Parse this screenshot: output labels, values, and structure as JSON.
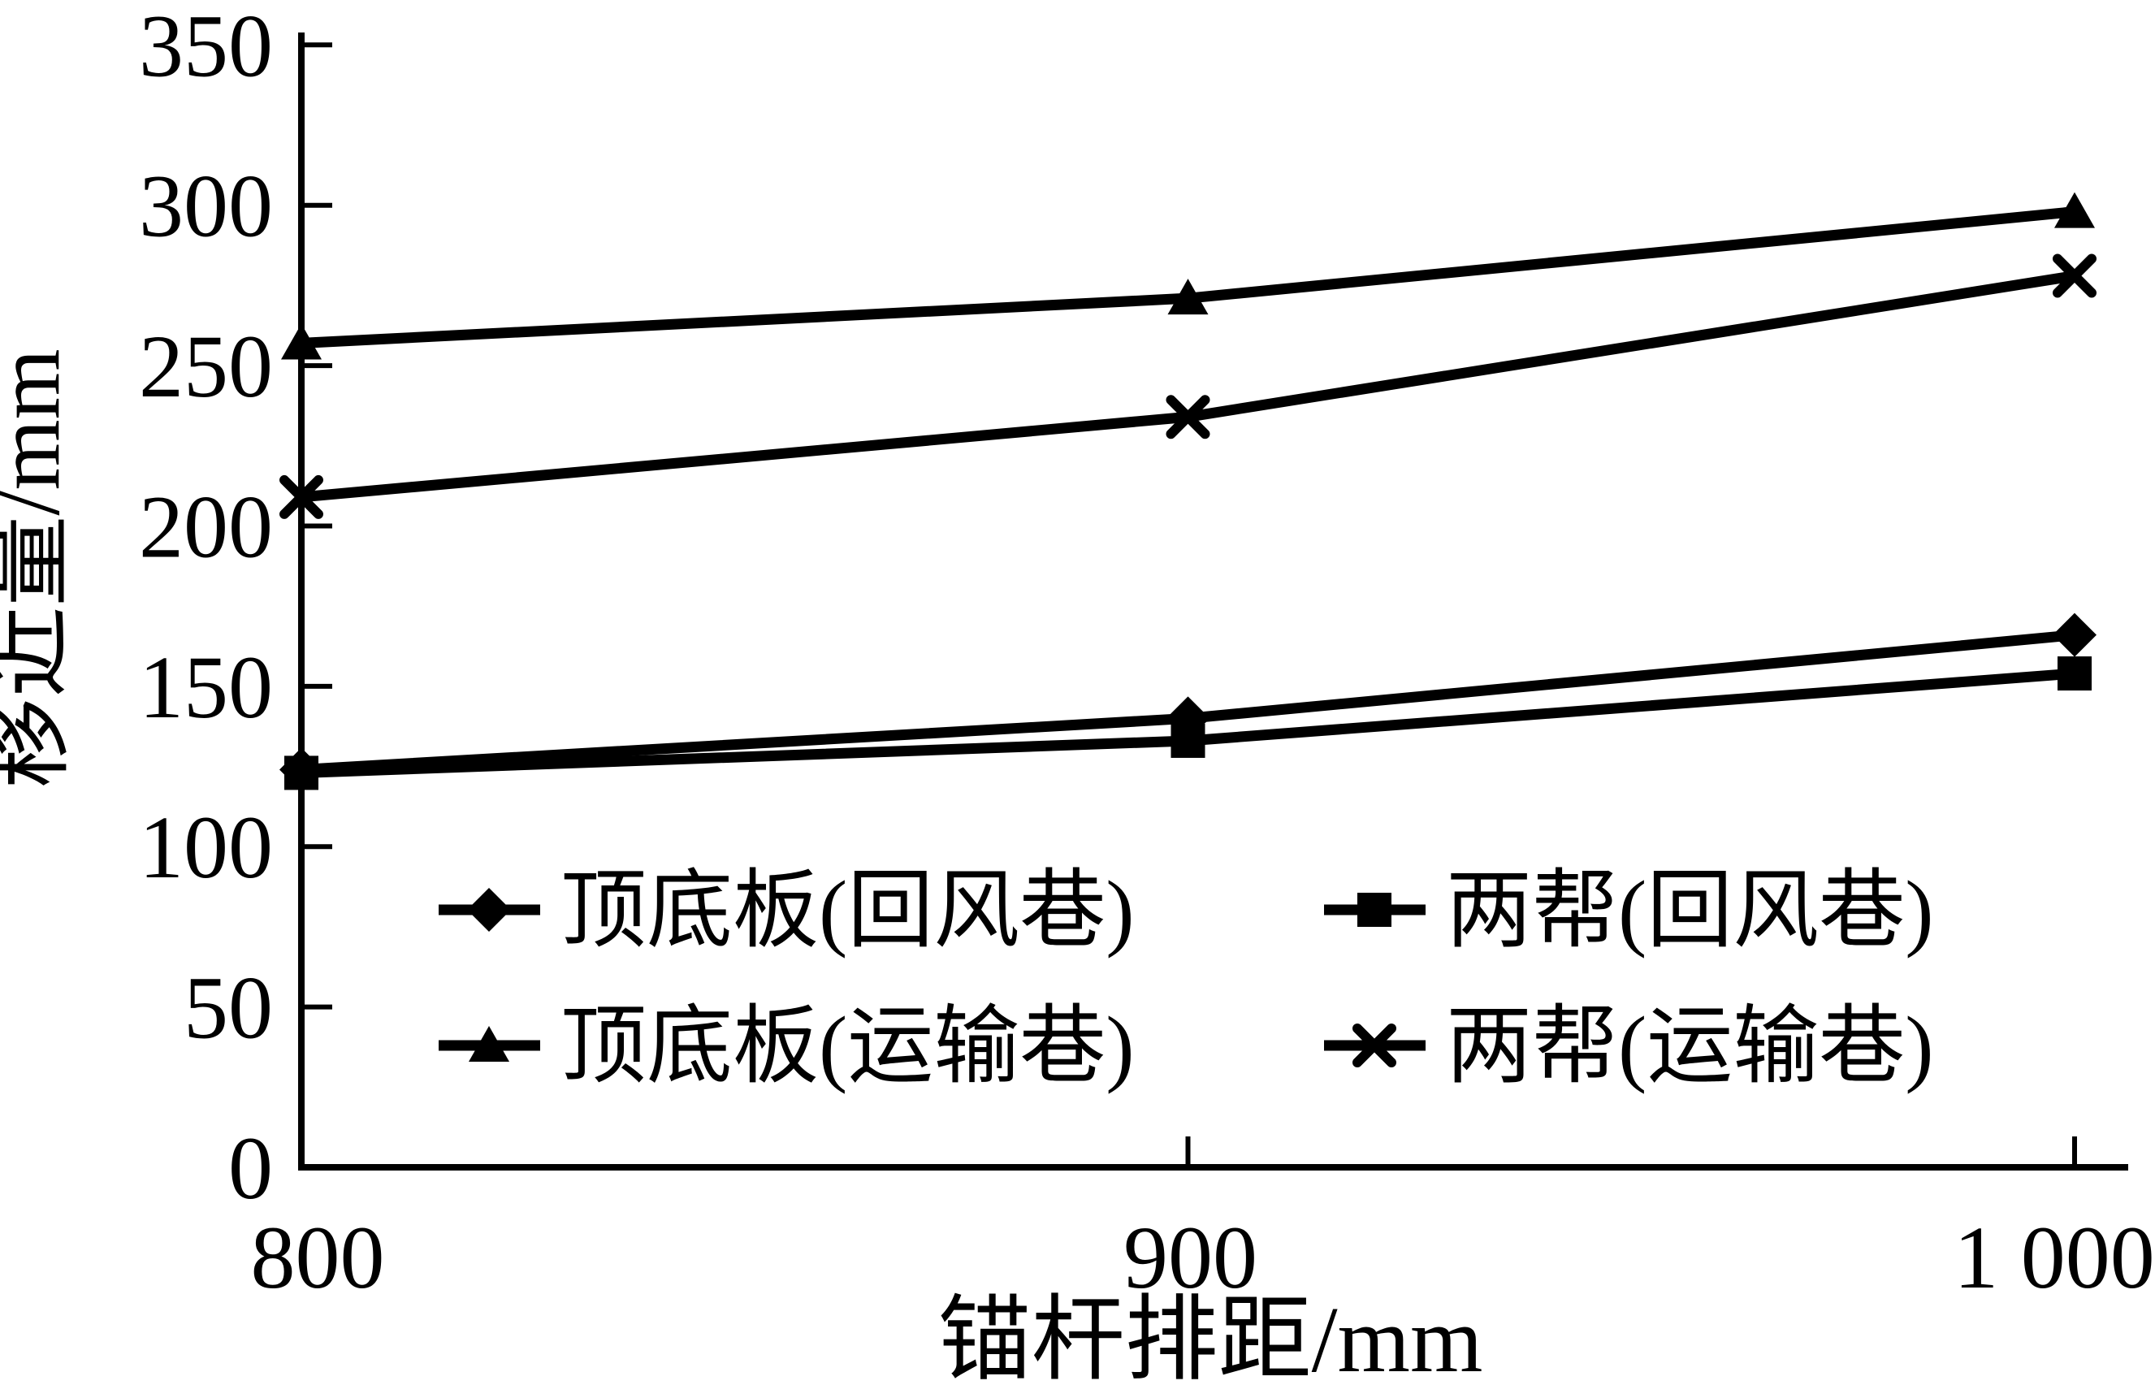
{
  "figure": {
    "background": "#ffffff",
    "ink_color": "#000000"
  },
  "chart_data": {
    "type": "line",
    "title": "",
    "xlabel": "锚杆排距/mm",
    "ylabel": "移近量/mm",
    "x": [
      800,
      900,
      1000
    ],
    "x_tick_labels": [
      "800",
      "900",
      "1 000"
    ],
    "ylim": [
      0,
      350
    ],
    "xlim": [
      800,
      1000
    ],
    "y_ticks": [
      0,
      50,
      100,
      150,
      200,
      250,
      300,
      350
    ],
    "grid": false,
    "legend_position": "inside bottom-left, 2 columns, no frame",
    "series": [
      {
        "name": "顶底板(回风巷)",
        "marker": "diamond",
        "color": "#000000",
        "values": [
          124,
          140,
          166
        ]
      },
      {
        "name": "两帮(回风巷)",
        "marker": "square",
        "color": "#000000",
        "values": [
          123,
          133,
          154
        ]
      },
      {
        "name": "顶底板(运输巷)",
        "marker": "triangle",
        "color": "#000000",
        "values": [
          257,
          271,
          298
        ]
      },
      {
        "name": "两帮(运输巷)",
        "marker": "x",
        "color": "#000000",
        "values": [
          209,
          234,
          278
        ]
      }
    ]
  }
}
